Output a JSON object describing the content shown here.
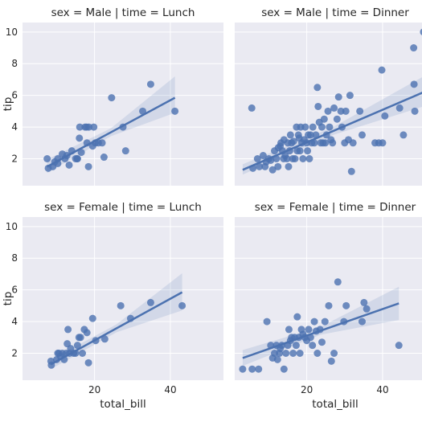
{
  "chart_data": {
    "type": "scatter",
    "style": {
      "panel_background": "#eaeaf2",
      "grid_color": "#ffffff",
      "point_color": "#4c72b0",
      "line_color": "#4c72b0",
      "band_color": "#4c72b0",
      "grid": true
    },
    "xlim": [
      1,
      54
    ],
    "ylim": [
      0.3,
      10.6
    ],
    "xticks": [
      20,
      40
    ],
    "yticks": [
      2,
      4,
      6,
      8,
      10
    ],
    "xlabel": "total_bill",
    "ylabel": "tip",
    "facets": [
      {
        "title": "sex = Male | time = Lunch",
        "row": 0,
        "col": 0,
        "regression": {
          "x": [
            7.5,
            41.2
          ],
          "y": [
            1.5,
            5.85
          ],
          "band_lo": [
            1.1,
            4.9
          ],
          "band_hi": [
            1.95,
            7.2
          ]
        },
        "points": [
          [
            7.5,
            2.0
          ],
          [
            7.8,
            1.4
          ],
          [
            9,
            1.5
          ],
          [
            9.5,
            1.8
          ],
          [
            10.3,
            2.0
          ],
          [
            10.3,
            1.7
          ],
          [
            11.5,
            2.3
          ],
          [
            12.2,
            2.0
          ],
          [
            12.7,
            2.2
          ],
          [
            13.3,
            1.6
          ],
          [
            14,
            2.5
          ],
          [
            15,
            2.0
          ],
          [
            15.4,
            2.0
          ],
          [
            15.5,
            2.0
          ],
          [
            16,
            3.3
          ],
          [
            16.1,
            4.0
          ],
          [
            16.5,
            2.4
          ],
          [
            17.5,
            4.0
          ],
          [
            17.9,
            4.0
          ],
          [
            18,
            3.0
          ],
          [
            18.5,
            4.0
          ],
          [
            18.4,
            1.5
          ],
          [
            19.5,
            2.8
          ],
          [
            19.8,
            4.0
          ],
          [
            20.2,
            3.0
          ],
          [
            21,
            3.0
          ],
          [
            22.5,
            2.1
          ],
          [
            22,
            3.0
          ],
          [
            24.5,
            5.85
          ],
          [
            27.5,
            4.0
          ],
          [
            28.2,
            2.5
          ],
          [
            32.7,
            5.0
          ],
          [
            34.8,
            6.7
          ],
          [
            41.2,
            5.0
          ]
        ]
      },
      {
        "title": "sex = Male | time = Dinner",
        "row": 0,
        "col": 1,
        "regression": {
          "x": [
            3.1,
            50.8
          ],
          "y": [
            1.3,
            6.2
          ],
          "band_lo": [
            1.0,
            5.3
          ],
          "band_hi": [
            1.65,
            7.2
          ]
        },
        "points": [
          [
            5.5,
            5.2
          ],
          [
            5.8,
            1.4
          ],
          [
            7,
            2.0
          ],
          [
            7.5,
            1.5
          ],
          [
            8.5,
            2.2
          ],
          [
            9,
            1.5
          ],
          [
            9.3,
            1.8
          ],
          [
            10,
            2.0
          ],
          [
            10.5,
            1.9
          ],
          [
            11,
            1.3
          ],
          [
            11.5,
            2.5
          ],
          [
            12,
            2.0
          ],
          [
            12.4,
            1.5
          ],
          [
            12.5,
            2.7
          ],
          [
            13,
            2.8
          ],
          [
            13.2,
            3.0
          ],
          [
            13.6,
            2.5
          ],
          [
            13.9,
            2.0
          ],
          [
            14,
            3.2
          ],
          [
            14.3,
            2.2
          ],
          [
            14.8,
            2.0
          ],
          [
            15,
            3.0
          ],
          [
            15.2,
            1.5
          ],
          [
            15.5,
            2.5
          ],
          [
            15.7,
            3.5
          ],
          [
            16,
            3.0
          ],
          [
            16.3,
            2.0
          ],
          [
            16.5,
            3.1
          ],
          [
            16.9,
            2.0
          ],
          [
            17.3,
            4.0
          ],
          [
            17.5,
            2.5
          ],
          [
            17.8,
            3.5
          ],
          [
            18,
            3.3
          ],
          [
            18.2,
            2.5
          ],
          [
            18.4,
            4.0
          ],
          [
            18.7,
            3.0
          ],
          [
            19,
            2.0
          ],
          [
            19.3,
            3.2
          ],
          [
            19.6,
            4.0
          ],
          [
            20,
            3.0
          ],
          [
            20.2,
            2.5
          ],
          [
            20.4,
            3.5
          ],
          [
            20.7,
            2.0
          ],
          [
            21,
            3.5
          ],
          [
            21.3,
            3.0
          ],
          [
            21.6,
            4.0
          ],
          [
            22,
            3.0
          ],
          [
            22.4,
            3.5
          ],
          [
            22.8,
            6.5
          ],
          [
            23,
            5.3
          ],
          [
            23.3,
            4.3
          ],
          [
            23.7,
            3.0
          ],
          [
            24,
            4.0
          ],
          [
            24.3,
            3.0
          ],
          [
            24.6,
            4.5
          ],
          [
            24.9,
            3.0
          ],
          [
            25.2,
            3.5
          ],
          [
            25.6,
            5.0
          ],
          [
            26,
            4.0
          ],
          [
            26.4,
            3.2
          ],
          [
            26.8,
            3.0
          ],
          [
            27.2,
            5.2
          ],
          [
            28,
            4.5
          ],
          [
            28.4,
            5.9
          ],
          [
            29,
            5.0
          ],
          [
            29.3,
            4.0
          ],
          [
            30,
            3.0
          ],
          [
            30.3,
            5.0
          ],
          [
            31,
            3.2
          ],
          [
            31.4,
            6.0
          ],
          [
            31.8,
            1.2
          ],
          [
            32.2,
            3.0
          ],
          [
            34,
            5.0
          ],
          [
            34.6,
            3.5
          ],
          [
            38,
            3.0
          ],
          [
            39,
            3.0
          ],
          [
            39.8,
            7.6
          ],
          [
            40,
            3.0
          ],
          [
            40.6,
            4.7
          ],
          [
            44.5,
            5.2
          ],
          [
            45.5,
            3.5
          ],
          [
            48.2,
            9.0
          ],
          [
            48.3,
            6.7
          ],
          [
            48.5,
            5.0
          ],
          [
            50.8,
            10.0
          ]
        ]
      },
      {
        "title": "sex = Female | time = Lunch",
        "row": 1,
        "col": 0,
        "regression": {
          "x": [
            8.5,
            43.1
          ],
          "y": [
            1.3,
            5.85
          ],
          "band_lo": [
            1.0,
            4.7
          ],
          "band_hi": [
            1.6,
            7.05
          ]
        },
        "points": [
          [
            8.5,
            1.5
          ],
          [
            8.6,
            1.25
          ],
          [
            10,
            1.6
          ],
          [
            10.3,
            2.0
          ],
          [
            10.6,
            2.0
          ],
          [
            11,
            1.8
          ],
          [
            11.5,
            2.0
          ],
          [
            12,
            1.6
          ],
          [
            12.5,
            2.0
          ],
          [
            12.8,
            2.6
          ],
          [
            13,
            3.5
          ],
          [
            13.4,
            2.0
          ],
          [
            13.7,
            2.3
          ],
          [
            14.5,
            2.0
          ],
          [
            15,
            2.0
          ],
          [
            15.5,
            2.5
          ],
          [
            15.9,
            3.0
          ],
          [
            16.3,
            3.0
          ],
          [
            16.8,
            2.0
          ],
          [
            17.3,
            3.5
          ],
          [
            18,
            3.3
          ],
          [
            18.4,
            1.4
          ],
          [
            19.5,
            4.2
          ],
          [
            20.3,
            2.8
          ],
          [
            22.7,
            2.9
          ],
          [
            26.9,
            5.0
          ],
          [
            29.5,
            4.2
          ],
          [
            34.8,
            5.2
          ],
          [
            43.1,
            5.0
          ]
        ]
      },
      {
        "title": "sex = Female | time = Dinner",
        "row": 1,
        "col": 1,
        "regression": {
          "x": [
            3.1,
            44.3
          ],
          "y": [
            1.7,
            5.15
          ],
          "band_lo": [
            1.2,
            4.1
          ],
          "band_hi": [
            2.2,
            6.2
          ]
        },
        "points": [
          [
            3.1,
            1.0
          ],
          [
            5.6,
            1.0
          ],
          [
            7.3,
            1.0
          ],
          [
            9.5,
            4.0
          ],
          [
            10.5,
            2.5
          ],
          [
            11,
            1.7
          ],
          [
            11.5,
            2.0
          ],
          [
            12,
            2.5
          ],
          [
            12.3,
            1.6
          ],
          [
            12.8,
            2.0
          ],
          [
            13,
            2.3
          ],
          [
            13.4,
            2.5
          ],
          [
            14,
            1.0
          ],
          [
            14.5,
            2.0
          ],
          [
            15,
            2.5
          ],
          [
            15.3,
            3.5
          ],
          [
            15.7,
            2.8
          ],
          [
            16,
            3.0
          ],
          [
            16.4,
            2.0
          ],
          [
            16.8,
            3.0
          ],
          [
            17.2,
            2.5
          ],
          [
            17.5,
            4.3
          ],
          [
            17.9,
            3.0
          ],
          [
            18.2,
            2.0
          ],
          [
            18.6,
            3.5
          ],
          [
            19,
            3.2
          ],
          [
            19.5,
            3.0
          ],
          [
            20,
            2.8
          ],
          [
            20.5,
            3.5
          ],
          [
            21,
            3.0
          ],
          [
            21.5,
            2.5
          ],
          [
            22,
            4.0
          ],
          [
            22.5,
            3.4
          ],
          [
            22.8,
            2.0
          ],
          [
            23.5,
            3.5
          ],
          [
            24,
            2.7
          ],
          [
            24.8,
            4.0
          ],
          [
            25.8,
            5.0
          ],
          [
            26.5,
            1.5
          ],
          [
            27.2,
            2.0
          ],
          [
            28.2,
            6.5
          ],
          [
            29.8,
            4.0
          ],
          [
            30.4,
            5.0
          ],
          [
            34.6,
            4.0
          ],
          [
            35.1,
            5.2
          ],
          [
            35.8,
            4.8
          ],
          [
            44.3,
            2.5
          ]
        ]
      }
    ]
  }
}
